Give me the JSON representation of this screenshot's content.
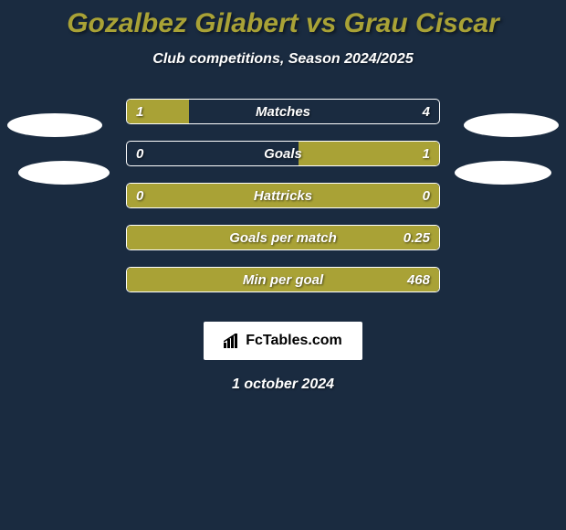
{
  "title": {
    "player1": "Gozalbez Gilabert",
    "vs": "vs",
    "player2": "Grau Ciscar",
    "player1_color": "#a9a236",
    "vs_color": "#a9a236",
    "player2_color": "#a9a236",
    "fontsize": 30
  },
  "subtitle": "Club competitions, Season 2024/2025",
  "background_color": "#1a2b40",
  "bar_color": "#a9a236",
  "bar_border_color": "#ffffff",
  "text_color": "#ffffff",
  "stats": [
    {
      "label": "Matches",
      "left_value": "1",
      "right_value": "4",
      "left_fill_pct": 20,
      "right_fill_pct": 0,
      "left_fill_color": "#a9a236",
      "right_fill_color": "transparent"
    },
    {
      "label": "Goals",
      "left_value": "0",
      "right_value": "1",
      "left_fill_pct": 0,
      "right_fill_pct": 45,
      "left_fill_color": "transparent",
      "right_fill_color": "#a9a236"
    },
    {
      "label": "Hattricks",
      "left_value": "0",
      "right_value": "0",
      "left_fill_pct": 100,
      "right_fill_pct": 0,
      "left_fill_color": "#a9a236",
      "right_fill_color": "transparent"
    },
    {
      "label": "Goals per match",
      "left_value": "",
      "right_value": "0.25",
      "left_fill_pct": 100,
      "right_fill_pct": 0,
      "left_fill_color": "#a9a236",
      "right_fill_color": "transparent"
    },
    {
      "label": "Min per goal",
      "left_value": "",
      "right_value": "468",
      "left_fill_pct": 100,
      "right_fill_pct": 0,
      "left_fill_color": "#a9a236",
      "right_fill_color": "transparent"
    }
  ],
  "ellipses": {
    "color": "#ffffff"
  },
  "footer": {
    "logo_text": "FcTables.com",
    "logo_bg": "#ffffff",
    "logo_text_color": "#000000"
  },
  "date": "1 october 2024"
}
